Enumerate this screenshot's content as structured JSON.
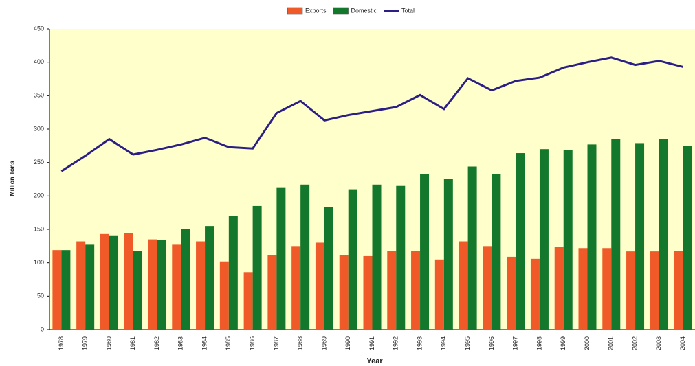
{
  "chart_data": {
    "type": "bar",
    "x_label": "Year",
    "y_label": "Million Tons",
    "categories": [
      "1978",
      "1979",
      "1980",
      "1981",
      "1982",
      "1983",
      "1984",
      "1985",
      "1986",
      "1987",
      "1988",
      "1989",
      "1990",
      "1991",
      "1992",
      "1993",
      "1994",
      "1995",
      "1996",
      "1997",
      "1998",
      "1999",
      "2000",
      "2001",
      "2002",
      "2003",
      "2004"
    ],
    "series": [
      {
        "name": "Exports",
        "type": "bar",
        "color": "#f05a28",
        "values": [
          119,
          132,
          143,
          144,
          135,
          127,
          132,
          102,
          86,
          111,
          125,
          130,
          111,
          110,
          118,
          118,
          105,
          132,
          125,
          109,
          106,
          124,
          122,
          122,
          117,
          117,
          118
        ]
      },
      {
        "name": "Domestic",
        "type": "bar",
        "color": "#13782b",
        "values": [
          119,
          127,
          141,
          118,
          134,
          150,
          155,
          170,
          185,
          212,
          217,
          183,
          210,
          217,
          215,
          233,
          225,
          244,
          233,
          264,
          270,
          269,
          277,
          285,
          279,
          285,
          275
        ]
      },
      {
        "name": "Total",
        "type": "line",
        "color": "#2b1f86",
        "values": [
          237,
          260,
          285,
          262,
          269,
          277,
          287,
          273,
          271,
          324,
          342,
          313,
          321,
          327,
          333,
          351,
          330,
          376,
          358,
          372,
          377,
          392,
          400,
          407,
          396,
          402,
          393
        ]
      }
    ],
    "ylim": [
      0,
      450
    ],
    "yticks": [
      0,
      50,
      100,
      150,
      200,
      250,
      300,
      350,
      400,
      450
    ],
    "grid": false,
    "legend": "top",
    "plot_background": "#ffffcc"
  }
}
